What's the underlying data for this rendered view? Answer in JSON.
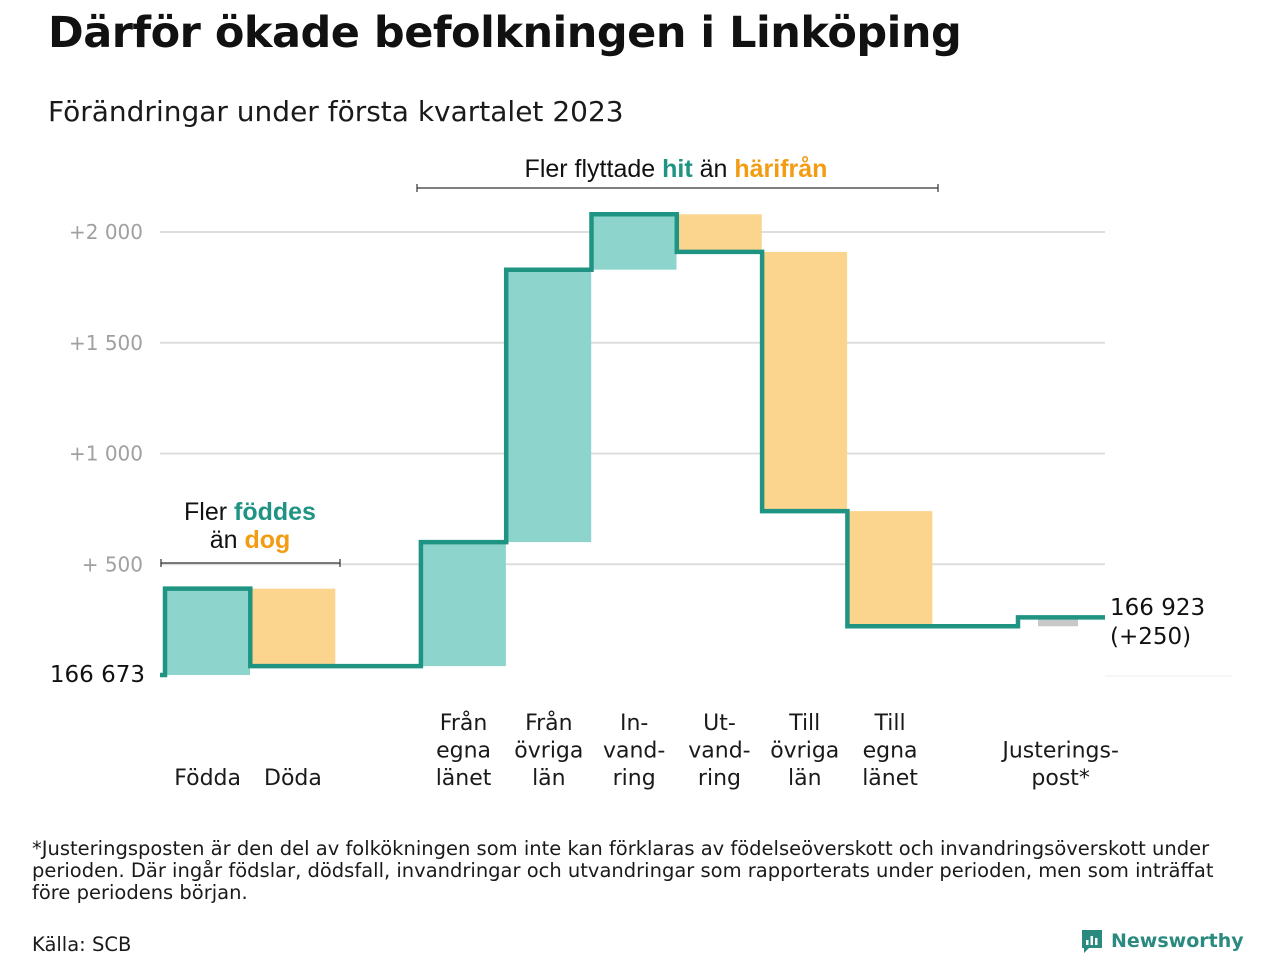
{
  "title": "Därför ökade befolkningen i Linköping",
  "subtitle": "Förändringar under första kvartalet 2023",
  "chart_data": {
    "type": "waterfall",
    "y_axis": {
      "ticks": [
        500,
        1000,
        1500,
        2000
      ],
      "tick_labels": [
        "+ 500",
        "+1 000",
        "+1 500",
        "+2 000"
      ],
      "ylim": [
        0,
        2100
      ]
    },
    "start_label": "166 673",
    "end_label": "166 923",
    "end_change_label": "(+250)",
    "steps": [
      {
        "label": "Födda",
        "value": 390
      },
      {
        "label": "Döda",
        "value": -350
      },
      {
        "label": "Från egna länet",
        "value": 560
      },
      {
        "label": "Från övriga län",
        "value": 1230
      },
      {
        "label": "In- vand- ring",
        "value": 250
      },
      {
        "label": "Ut- vand- ring",
        "value": -170
      },
      {
        "label": "Till övriga län",
        "value": -1170
      },
      {
        "label": "Till egna länet",
        "value": -520
      },
      {
        "label": "Justerings- post*",
        "value": 40
      }
    ],
    "category_labels": [
      [
        "Födda"
      ],
      [
        "Döda"
      ],
      [
        "Från",
        "egna",
        "länet"
      ],
      [
        "Från",
        "övriga",
        "län"
      ],
      [
        "In-",
        "vand-",
        "ring"
      ],
      [
        "Ut-",
        "vand-",
        "ring"
      ],
      [
        "Till",
        "övriga",
        "län"
      ],
      [
        "Till",
        "egna",
        "länet"
      ],
      [
        "Justerings-",
        "post*"
      ]
    ],
    "annotations": {
      "births_deaths": {
        "line1": "Fler",
        "highlight1": "föddes",
        "line2": "än",
        "highlight2": "dog"
      },
      "migration": {
        "text1": "Fler flyttade",
        "highlight1": "hit",
        "text2": "än",
        "highlight2": "härifrån"
      }
    },
    "colors": {
      "increase": "#8dd5cc",
      "decrease": "#fbd58e",
      "adjustment": "#c8c8c8",
      "line": "#1f9483",
      "teal_text": "#1f9483",
      "orange_text": "#f39c12",
      "grid": "#dddddd",
      "tick_text": "#a0a0a0"
    }
  },
  "footnote": "*Justeringsposten är den del av folkökningen som inte kan förklaras av födelseöverskott och invandringsöverskott under perioden. Där ingår födslar, dödsfall, invandringar och utvandringar som rapporterats under perioden, men som inträffat före periodens början.",
  "source": "Källa: SCB",
  "brand": "Newsworthy"
}
